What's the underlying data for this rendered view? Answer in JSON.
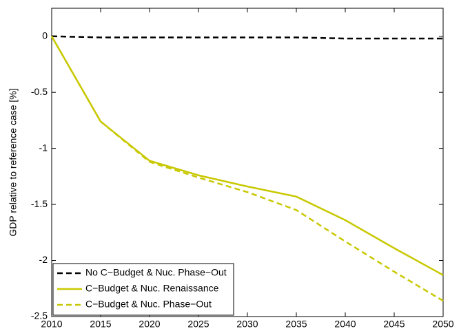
{
  "chart_data": {
    "type": "line",
    "y_label": "GDP relative to reference case [%]",
    "x": [
      2010,
      2015,
      2020,
      2025,
      2030,
      2035,
      2040,
      2045,
      2050
    ],
    "series": [
      {
        "name": "No C−Budget & Nuc. Phase−Out",
        "color": "#000000",
        "linestyle": "dashed",
        "values": [
          0,
          -0.01,
          -0.01,
          -0.01,
          -0.01,
          -0.01,
          -0.02,
          -0.02,
          -0.02
        ]
      },
      {
        "name": "C−Budget & Nuc. Renaissance",
        "color": "#c8c800",
        "linestyle": "solid",
        "values": [
          0,
          -0.76,
          -1.11,
          -1.24,
          -1.34,
          -1.43,
          -1.64,
          -1.89,
          -2.13
        ]
      },
      {
        "name": "C−Budget & Nuc. Phase−Out",
        "color": "#c8c800",
        "linestyle": "dashed",
        "values": [
          0,
          -0.76,
          -1.12,
          -1.26,
          -1.39,
          -1.55,
          -1.83,
          -2.1,
          -2.36
        ]
      }
    ],
    "xlim": [
      2010,
      2050
    ],
    "xticks": [
      2010,
      2015,
      2020,
      2025,
      2030,
      2035,
      2040,
      2045,
      2050
    ],
    "ylim": [
      -2.5,
      0.25
    ],
    "yticks": [
      -2.5,
      -2,
      -1.5,
      -1,
      -0.5,
      0
    ],
    "grid": false,
    "legend": "lower left"
  }
}
